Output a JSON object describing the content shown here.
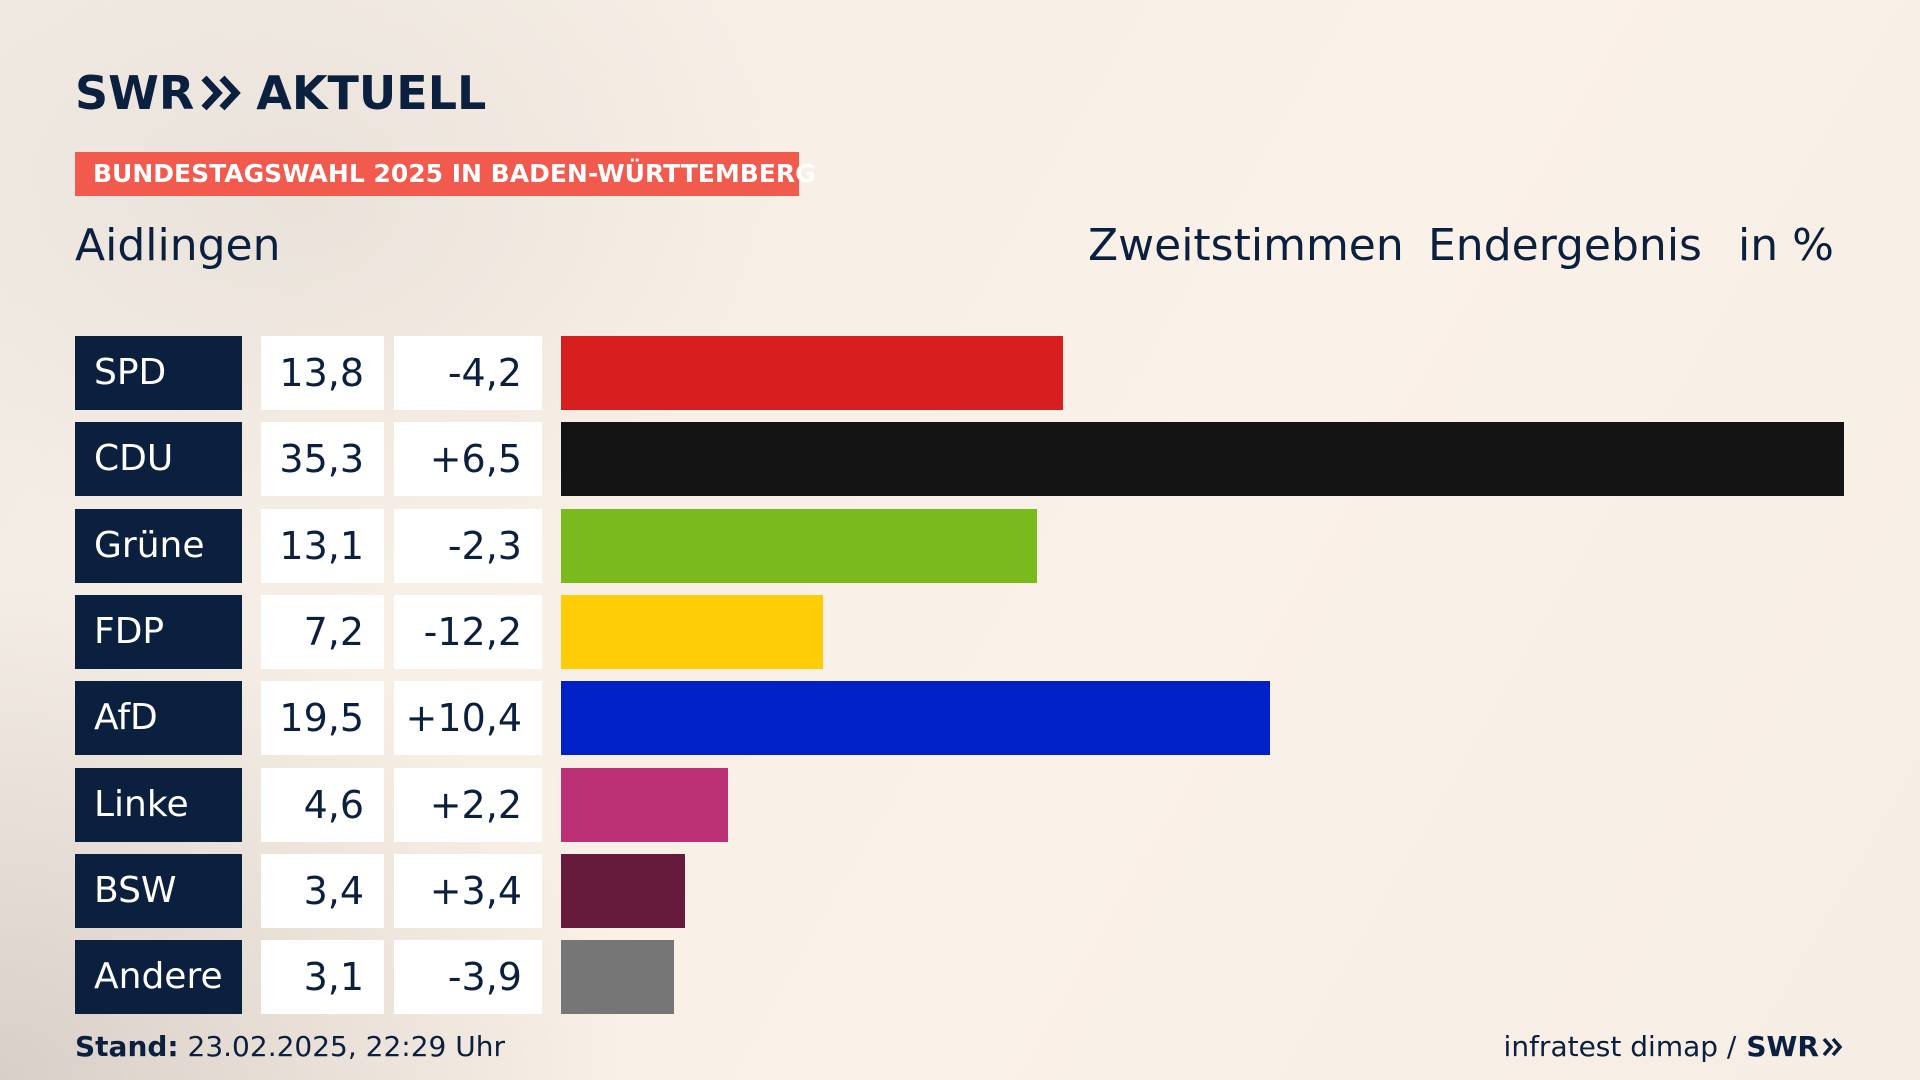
{
  "brand": {
    "name_left": "SWR",
    "name_right": "AKTUELL",
    "chevron_icon": "double-chevron-icon",
    "color": "#0b1f3f"
  },
  "badge": {
    "text": "BUNDESTAGSWAHL 2025 IN BADEN-WÜRTTEMBERG",
    "color": "#f15a4d"
  },
  "location": "Aidlingen",
  "headers": {
    "vote_type": "Zweitstimmen",
    "status": "Endergebnis",
    "unit": "in %"
  },
  "chart_data": {
    "type": "bar",
    "categories": [
      "SPD",
      "CDU",
      "Grüne",
      "FDP",
      "AfD",
      "Linke",
      "BSW",
      "Andere"
    ],
    "values": [
      13.8,
      35.3,
      13.1,
      7.2,
      19.5,
      4.6,
      3.4,
      3.1
    ],
    "value_labels": [
      "13,8",
      "35,3",
      "13,1",
      "7,2",
      "19,5",
      "4,6",
      "3,4",
      "3,1"
    ],
    "change_labels": [
      "-4,2",
      "+6,5",
      "-2,3",
      "-12,2",
      "+10,4",
      "+2,2",
      "+3,4",
      "-3,9"
    ],
    "changes": [
      -4.2,
      6.5,
      -2.3,
      -12.2,
      10.4,
      2.2,
      3.4,
      -3.9
    ],
    "colors": [
      "#d71f1f",
      "#141414",
      "#7aba1c",
      "#ffcc08",
      "#0021c7",
      "#bc3175",
      "#661a3c",
      "#767676"
    ],
    "xlim": [
      0,
      35.3
    ],
    "orientation": "horizontal",
    "grid": false,
    "legend": "none"
  },
  "footer": {
    "stand_label": "Stand:",
    "stand_value": "23.02.2025, 22:29 Uhr",
    "source": "infratest dimap /",
    "source_brand": "SWR"
  }
}
